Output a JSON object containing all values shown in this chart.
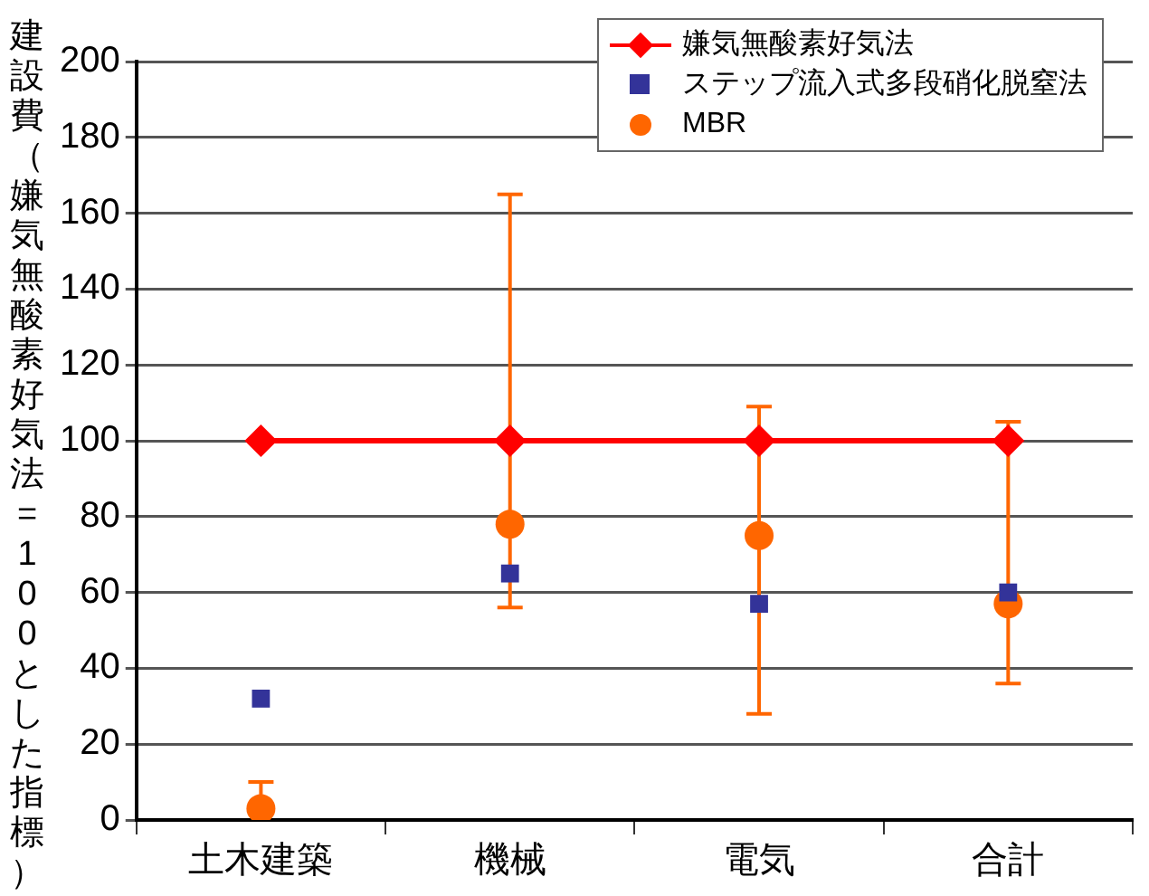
{
  "chart_data": {
    "type": "line",
    "ylabel": "建設費（嫌気無酸素好気法=100とした指標）",
    "categories": [
      "土木建築",
      "機械",
      "電気",
      "合計"
    ],
    "ylim": [
      0,
      200
    ],
    "yticks": [
      0,
      20,
      40,
      60,
      80,
      100,
      120,
      140,
      160,
      180,
      200
    ],
    "grid": "y",
    "legend": "top right",
    "series": [
      {
        "name": "嫌気無酸素好気法",
        "type": "line",
        "color": "#ff0000",
        "marker": "diamond",
        "values": [
          100,
          100,
          100,
          100
        ]
      },
      {
        "name": "ステップ流入式多段硝化脱窒法",
        "type": "scatter",
        "color": "#333399",
        "marker": "square",
        "values": [
          32,
          65,
          57,
          60
        ]
      },
      {
        "name": "MBR",
        "type": "scatter",
        "color": "#ff6600",
        "marker": "circle",
        "values": [
          3,
          78,
          75,
          57
        ],
        "errors": [
          [
            0,
            10
          ],
          [
            56,
            165
          ],
          [
            28,
            109
          ],
          [
            36,
            105
          ]
        ]
      }
    ]
  }
}
